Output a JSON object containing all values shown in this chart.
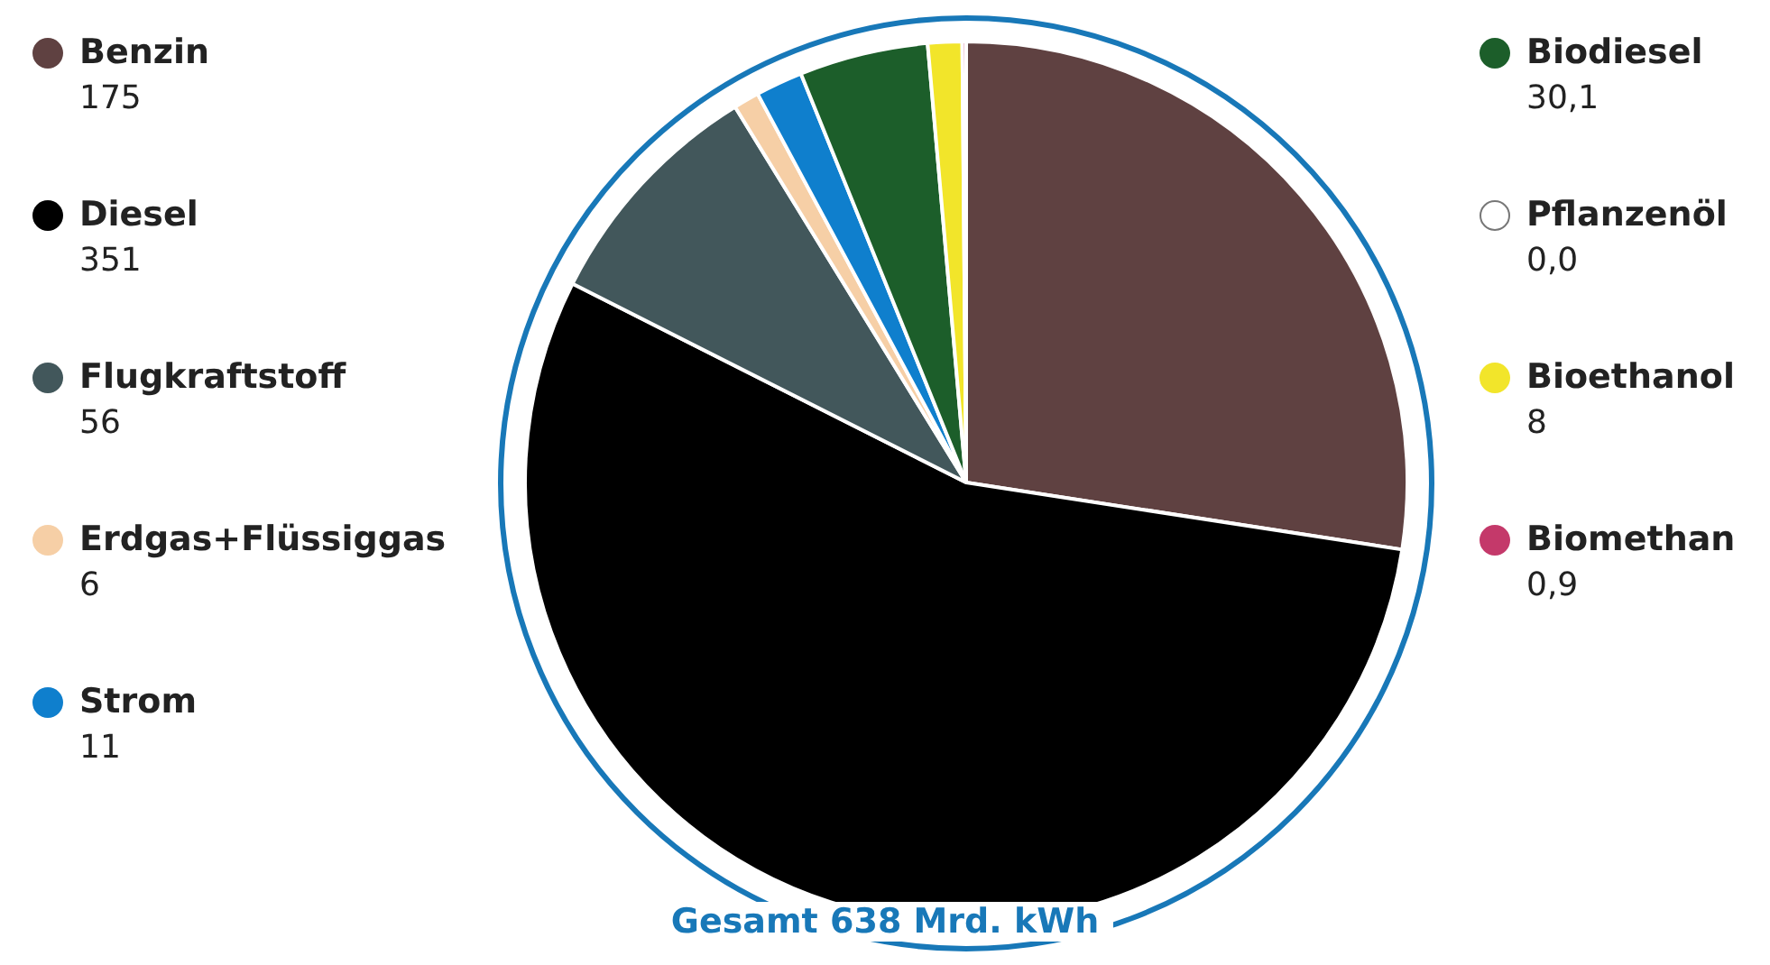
{
  "chart_data": {
    "type": "pie",
    "categories": [
      "Benzin",
      "Diesel",
      "Flugkraftstoff",
      "Erdgas+Flüssiggas",
      "Strom",
      "Biodiesel",
      "Pflanzenöl",
      "Bioethanol",
      "Biomethan"
    ],
    "values": [
      175,
      351,
      56,
      6,
      11,
      30.1,
      0.0,
      8,
      0.9
    ],
    "value_labels": [
      "175",
      "351",
      "56",
      "6",
      "11",
      "30,1",
      "0,0",
      "8",
      "0,9"
    ],
    "colors": [
      "#5f4141",
      "#000000",
      "#42575b",
      "#f6cfa6",
      "#0f7fcd",
      "#1c5e2a",
      "#ffffff",
      "#f2e52a",
      "#c4396a"
    ],
    "legend": "left",
    "annotations": [
      "Gesamt 638 Mrd. kWh"
    ]
  }
}
